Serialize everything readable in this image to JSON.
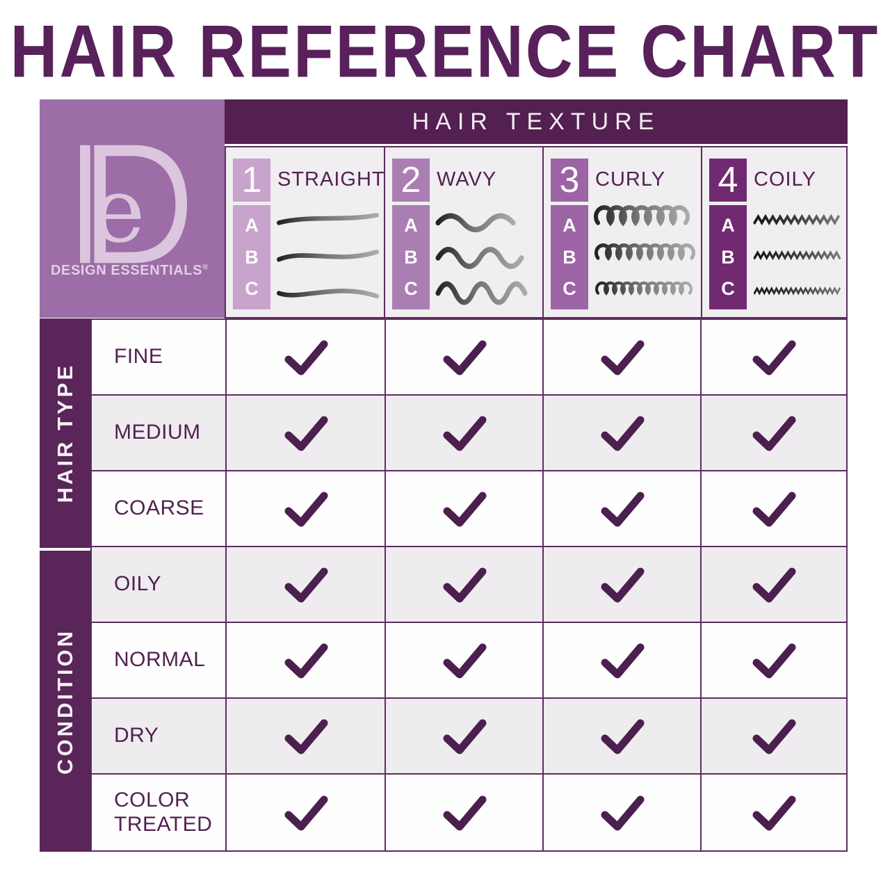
{
  "title": "HAIR REFERENCE CHART",
  "brand": {
    "monogram": "De",
    "name": "DESIGN ESSENTIALS",
    "registered": "®"
  },
  "table": {
    "header": "HAIR TEXTURE",
    "columns": [
      {
        "number": "1",
        "letters": [
          "A",
          "B",
          "C"
        ],
        "label": "STRAIGHT",
        "badge_color": "#c8a3cc",
        "illustration": "straight-hair"
      },
      {
        "number": "2",
        "letters": [
          "A",
          "B",
          "C"
        ],
        "label": "WAVY",
        "badge_color": "#aa7eb3",
        "illustration": "wavy-hair"
      },
      {
        "number": "3",
        "letters": [
          "A",
          "B",
          "C"
        ],
        "label": "CURLY",
        "badge_color": "#9c63a5",
        "illustration": "curly-hair"
      },
      {
        "number": "4",
        "letters": [
          "A",
          "B",
          "C"
        ],
        "label": "COILY",
        "badge_color": "#712a72",
        "illustration": "coily-hair"
      }
    ],
    "row_groups": [
      {
        "label": "HAIR TYPE",
        "rows": [
          {
            "label": "FINE",
            "checks": [
              true,
              true,
              true,
              true
            ]
          },
          {
            "label": "MEDIUM",
            "checks": [
              true,
              true,
              true,
              true
            ]
          },
          {
            "label": "COARSE",
            "checks": [
              true,
              true,
              true,
              true
            ]
          }
        ]
      },
      {
        "label": "CONDITION",
        "rows": [
          {
            "label": "OILY",
            "checks": [
              true,
              true,
              true,
              true
            ]
          },
          {
            "label": "NORMAL",
            "checks": [
              true,
              true,
              true,
              true
            ]
          },
          {
            "label": "DRY",
            "checks": [
              true,
              true,
              true,
              true
            ]
          },
          {
            "label": "COLOR TREATED",
            "checks": [
              true,
              true,
              true,
              true
            ]
          }
        ]
      }
    ]
  },
  "colors": {
    "title_purple": "#58215b",
    "header_bg": "#532051",
    "sidebar_bg": "#5a2558",
    "logo_bg": "#9c6da7",
    "logo_foreground": "#dcc6de",
    "cell_gray": "#eeecef",
    "border_purple": "#5e2b5e",
    "checkmark": "#4b1f4e"
  },
  "chart_data": {
    "type": "table",
    "title": "HAIR REFERENCE CHART",
    "column_header": "HAIR TEXTURE",
    "columns": [
      "1 A-B-C STRAIGHT",
      "2 A-B-C WAVY",
      "3 A-B-C CURLY",
      "4 A-B-C COILY"
    ],
    "row_groups": [
      {
        "name": "HAIR TYPE",
        "rows": [
          "FINE",
          "MEDIUM",
          "COARSE"
        ]
      },
      {
        "name": "CONDITION",
        "rows": [
          "OILY",
          "NORMAL",
          "DRY",
          "COLOR TREATED"
        ]
      }
    ],
    "matrix": [
      [
        true,
        true,
        true,
        true
      ],
      [
        true,
        true,
        true,
        true
      ],
      [
        true,
        true,
        true,
        true
      ],
      [
        true,
        true,
        true,
        true
      ],
      [
        true,
        true,
        true,
        true
      ],
      [
        true,
        true,
        true,
        true
      ],
      [
        true,
        true,
        true,
        true
      ]
    ],
    "legend_position": "none",
    "grid": true
  }
}
